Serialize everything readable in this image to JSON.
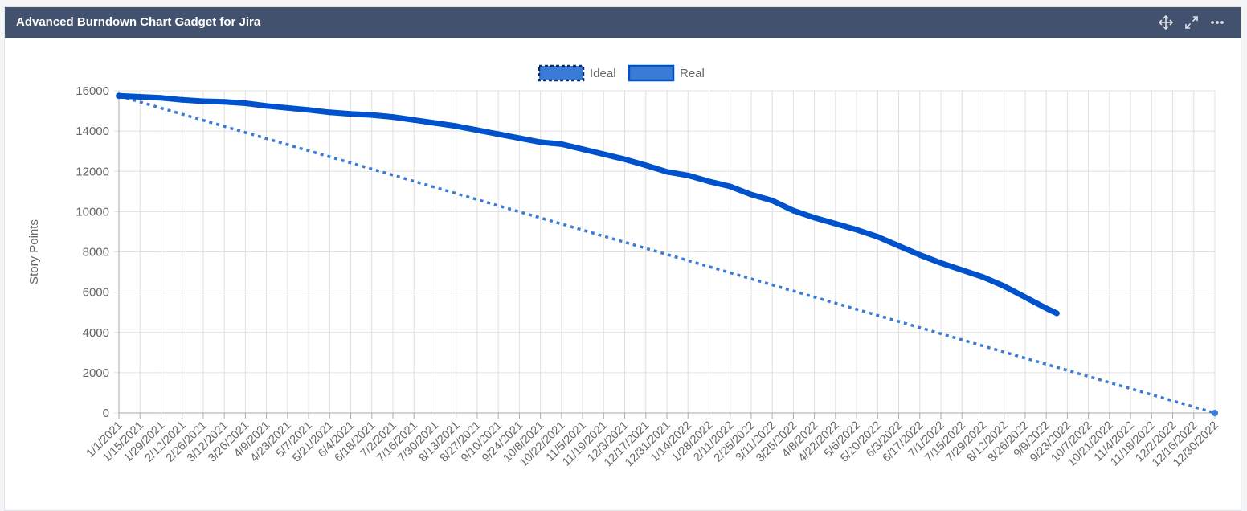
{
  "gadget": {
    "title": "Advanced Burndown Chart Gadget for Jira",
    "icons": [
      "move-icon",
      "expand-icon",
      "more-icon"
    ]
  },
  "colors": {
    "header_bg": "#42526e",
    "series": "#0052cc",
    "ideal": "#3a7bd5",
    "grid": "#e0e0e0",
    "axis_text": "#666666"
  },
  "chart_data": {
    "type": "line",
    "title": "",
    "xlabel": "",
    "ylabel": "Story Points",
    "ylim": [
      0,
      16000
    ],
    "yticks": [
      0,
      2000,
      4000,
      6000,
      8000,
      10000,
      12000,
      14000,
      16000
    ],
    "x_tick_labels": [
      "1/1/2021",
      "1/15/2021",
      "1/29/2021",
      "2/12/2021",
      "2/26/2021",
      "3/12/2021",
      "3/26/2021",
      "4/9/2021",
      "4/23/2021",
      "5/7/2021",
      "5/21/2021",
      "6/4/2021",
      "6/18/2021",
      "7/2/2021",
      "7/16/2021",
      "7/30/2021",
      "8/13/2021",
      "8/27/2021",
      "9/10/2021",
      "9/24/2021",
      "10/8/2021",
      "10/22/2021",
      "11/5/2021",
      "11/19/2021",
      "12/3/2021",
      "12/17/2021",
      "12/31/2021",
      "1/14/2022",
      "1/28/2022",
      "2/11/2022",
      "2/25/2022",
      "3/11/2022",
      "3/25/2022",
      "4/8/2022",
      "4/22/2022",
      "5/6/2022",
      "5/20/2022",
      "6/3/2022",
      "6/17/2022",
      "7/1/2022",
      "7/15/2022",
      "7/29/2022",
      "8/12/2022",
      "8/26/2022",
      "9/9/2022",
      "9/23/2022",
      "10/7/2022",
      "10/21/2022",
      "11/4/2022",
      "11/18/2022",
      "12/2/2022",
      "12/16/2022",
      "12/30/2022"
    ],
    "legend": {
      "placement": "top-center",
      "entries": [
        "Ideal",
        "Real"
      ]
    },
    "grid": true,
    "series": [
      {
        "name": "Ideal",
        "style": "dotted",
        "x": [
          "1/1/2021",
          "12/30/2022"
        ],
        "y": [
          15750,
          0
        ]
      },
      {
        "name": "Real",
        "style": "solid",
        "x": [
          "1/1/2021",
          "1/15/2021",
          "1/29/2021",
          "2/12/2021",
          "2/26/2021",
          "3/12/2021",
          "3/26/2021",
          "4/9/2021",
          "4/23/2021",
          "5/7/2021",
          "5/21/2021",
          "6/4/2021",
          "6/18/2021",
          "7/2/2021",
          "7/16/2021",
          "7/30/2021",
          "8/13/2021",
          "8/27/2021",
          "9/10/2021",
          "9/24/2021",
          "10/8/2021",
          "10/22/2021",
          "11/5/2021",
          "11/19/2021",
          "12/3/2021",
          "12/17/2021",
          "12/31/2021",
          "1/14/2022",
          "1/28/2022",
          "2/11/2022",
          "2/25/2022",
          "3/11/2022",
          "3/25/2022",
          "4/8/2022",
          "4/22/2022",
          "5/6/2022",
          "5/20/2022",
          "6/3/2022",
          "6/17/2022",
          "7/1/2022",
          "7/15/2022",
          "7/29/2022",
          "8/12/2022",
          "8/26/2022",
          "9/9/2022",
          "9/16/2022"
        ],
        "y": [
          15750,
          15700,
          15650,
          15550,
          15480,
          15450,
          15380,
          15250,
          15150,
          15050,
          14930,
          14850,
          14800,
          14700,
          14550,
          14400,
          14250,
          14050,
          13850,
          13650,
          13450,
          13350,
          13100,
          12850,
          12600,
          12300,
          11980,
          11800,
          11500,
          11250,
          10850,
          10550,
          10050,
          9700,
          9400,
          9100,
          8750,
          8300,
          7850,
          7450,
          7100,
          6750,
          6300,
          5750,
          5200,
          4950
        ]
      }
    ]
  }
}
